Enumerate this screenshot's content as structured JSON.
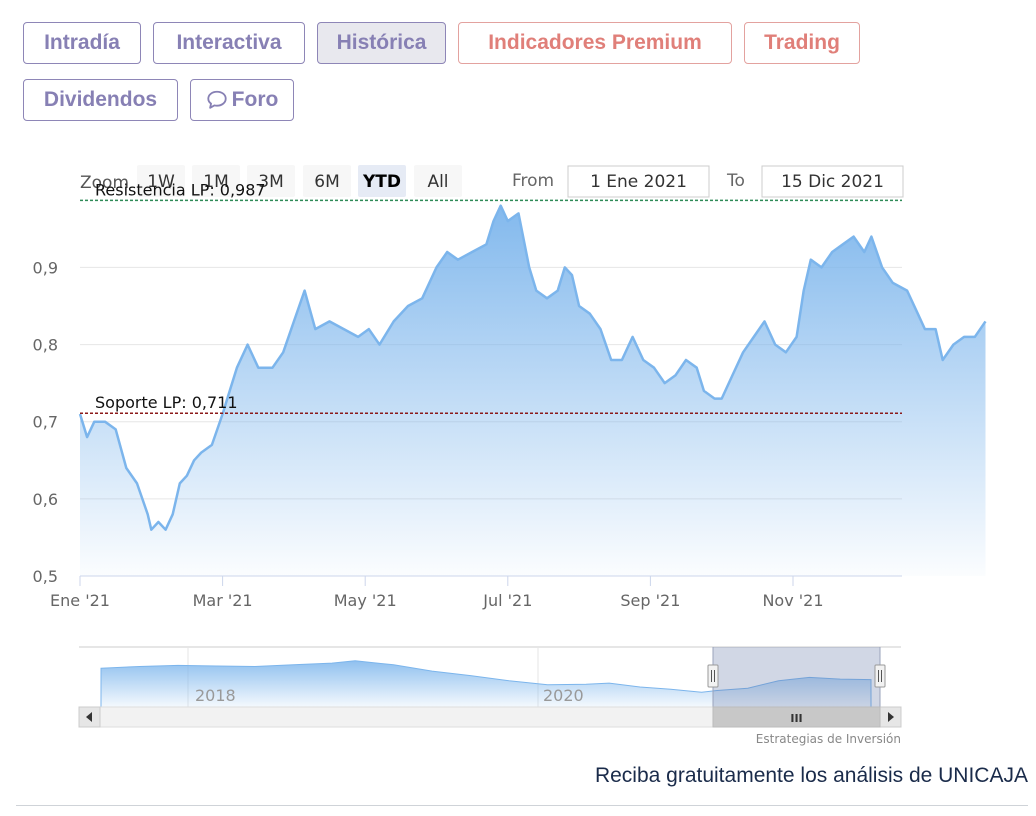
{
  "tabs": [
    {
      "label": "Intradía",
      "state": "normal"
    },
    {
      "label": "Interactiva",
      "state": "normal"
    },
    {
      "label": "Histórica",
      "state": "active"
    },
    {
      "label": "Indicadores Premium",
      "state": "premium"
    },
    {
      "label": "Trading",
      "state": "premium"
    },
    {
      "label": "Dividendos",
      "state": "normal"
    },
    {
      "label": "Foro",
      "state": "normal",
      "icon": "chat-bubble-icon"
    }
  ],
  "range_selector": {
    "zoom_label": "Zoom",
    "buttons": [
      "1W",
      "1M",
      "3M",
      "6M",
      "YTD",
      "All"
    ],
    "selected": "YTD",
    "from_label": "From",
    "from_value": "1 Ene 2021",
    "to_label": "To",
    "to_value": "15 Dic 2021"
  },
  "chart_data": {
    "type": "area",
    "series_color": "#7cb5ec",
    "ylim": [
      0.5,
      0.99
    ],
    "y_ticks": [
      "0,5",
      "0,6",
      "0,7",
      "0,8",
      "0,9"
    ],
    "x_ticks": [
      "Ene '21",
      "Mar '21",
      "May '21",
      "Jul '21",
      "Sep '21",
      "Nov '21"
    ],
    "x_tick_months": [
      0,
      2,
      4,
      6,
      8,
      10
    ],
    "x_range_months": [
      0,
      11.5
    ],
    "points": [
      [
        0.0,
        0.71
      ],
      [
        0.1,
        0.68
      ],
      [
        0.2,
        0.7
      ],
      [
        0.35,
        0.7
      ],
      [
        0.5,
        0.69
      ],
      [
        0.65,
        0.64
      ],
      [
        0.8,
        0.62
      ],
      [
        0.95,
        0.58
      ],
      [
        1.0,
        0.56
      ],
      [
        1.1,
        0.57
      ],
      [
        1.2,
        0.56
      ],
      [
        1.3,
        0.58
      ],
      [
        1.4,
        0.62
      ],
      [
        1.5,
        0.63
      ],
      [
        1.6,
        0.65
      ],
      [
        1.7,
        0.66
      ],
      [
        1.85,
        0.67
      ],
      [
        2.0,
        0.71
      ],
      [
        2.1,
        0.74
      ],
      [
        2.2,
        0.77
      ],
      [
        2.35,
        0.8
      ],
      [
        2.5,
        0.77
      ],
      [
        2.7,
        0.77
      ],
      [
        2.85,
        0.79
      ],
      [
        3.0,
        0.83
      ],
      [
        3.15,
        0.87
      ],
      [
        3.3,
        0.82
      ],
      [
        3.5,
        0.83
      ],
      [
        3.7,
        0.82
      ],
      [
        3.9,
        0.81
      ],
      [
        4.05,
        0.82
      ],
      [
        4.2,
        0.8
      ],
      [
        4.4,
        0.83
      ],
      [
        4.6,
        0.85
      ],
      [
        4.8,
        0.86
      ],
      [
        5.0,
        0.9
      ],
      [
        5.15,
        0.92
      ],
      [
        5.3,
        0.91
      ],
      [
        5.5,
        0.92
      ],
      [
        5.7,
        0.93
      ],
      [
        5.8,
        0.96
      ],
      [
        5.9,
        0.98
      ],
      [
        6.0,
        0.96
      ],
      [
        6.15,
        0.97
      ],
      [
        6.3,
        0.9
      ],
      [
        6.4,
        0.87
      ],
      [
        6.55,
        0.86
      ],
      [
        6.7,
        0.87
      ],
      [
        6.8,
        0.9
      ],
      [
        6.9,
        0.89
      ],
      [
        7.0,
        0.85
      ],
      [
        7.15,
        0.84
      ],
      [
        7.3,
        0.82
      ],
      [
        7.45,
        0.78
      ],
      [
        7.6,
        0.78
      ],
      [
        7.75,
        0.81
      ],
      [
        7.9,
        0.78
      ],
      [
        8.05,
        0.77
      ],
      [
        8.2,
        0.75
      ],
      [
        8.35,
        0.76
      ],
      [
        8.5,
        0.78
      ],
      [
        8.65,
        0.77
      ],
      [
        8.75,
        0.74
      ],
      [
        8.9,
        0.73
      ],
      [
        9.0,
        0.73
      ],
      [
        9.15,
        0.76
      ],
      [
        9.3,
        0.79
      ],
      [
        9.45,
        0.81
      ],
      [
        9.6,
        0.83
      ],
      [
        9.75,
        0.8
      ],
      [
        9.9,
        0.79
      ],
      [
        10.05,
        0.81
      ],
      [
        10.15,
        0.87
      ],
      [
        10.25,
        0.91
      ],
      [
        10.4,
        0.9
      ],
      [
        10.55,
        0.92
      ],
      [
        10.7,
        0.93
      ],
      [
        10.85,
        0.94
      ],
      [
        11.0,
        0.92
      ],
      [
        11.1,
        0.94
      ],
      [
        11.25,
        0.9
      ],
      [
        11.4,
        0.88
      ],
      [
        11.6,
        0.87
      ],
      [
        11.75,
        0.84
      ],
      [
        11.85,
        0.82
      ],
      [
        12.0,
        0.82
      ],
      [
        12.1,
        0.78
      ],
      [
        12.25,
        0.8
      ],
      [
        12.4,
        0.81
      ],
      [
        12.55,
        0.81
      ],
      [
        12.7,
        0.83
      ]
    ],
    "plot_lines": [
      {
        "label": "Resistencia LP: 0,987",
        "value": 0.987,
        "color": "#2e8b57"
      },
      {
        "label": "Soporte LP: 0,711",
        "value": 0.711,
        "color": "#8b1a1a"
      }
    ],
    "navigator": {
      "x_labels": [
        "2018",
        "2020"
      ],
      "points": [
        [
          0.0,
          0.68
        ],
        [
          0.05,
          0.71
        ],
        [
          0.1,
          0.73
        ],
        [
          0.15,
          0.72
        ],
        [
          0.2,
          0.71
        ],
        [
          0.25,
          0.74
        ],
        [
          0.3,
          0.77
        ],
        [
          0.33,
          0.81
        ],
        [
          0.38,
          0.74
        ],
        [
          0.43,
          0.63
        ],
        [
          0.48,
          0.55
        ],
        [
          0.53,
          0.46
        ],
        [
          0.58,
          0.39
        ],
        [
          0.63,
          0.4
        ],
        [
          0.66,
          0.42
        ],
        [
          0.7,
          0.35
        ],
        [
          0.74,
          0.31
        ],
        [
          0.78,
          0.26
        ],
        [
          0.8,
          0.29
        ],
        [
          0.84,
          0.33
        ],
        [
          0.88,
          0.46
        ],
        [
          0.92,
          0.52
        ],
        [
          0.96,
          0.49
        ],
        [
          1.0,
          0.48
        ]
      ]
    }
  },
  "scrollbar": {
    "handle_icon": "III"
  },
  "credits": "Estrategias de Inversión",
  "footer": {
    "text": "Reciba gratuitamente los análisis de UNICAJA"
  }
}
